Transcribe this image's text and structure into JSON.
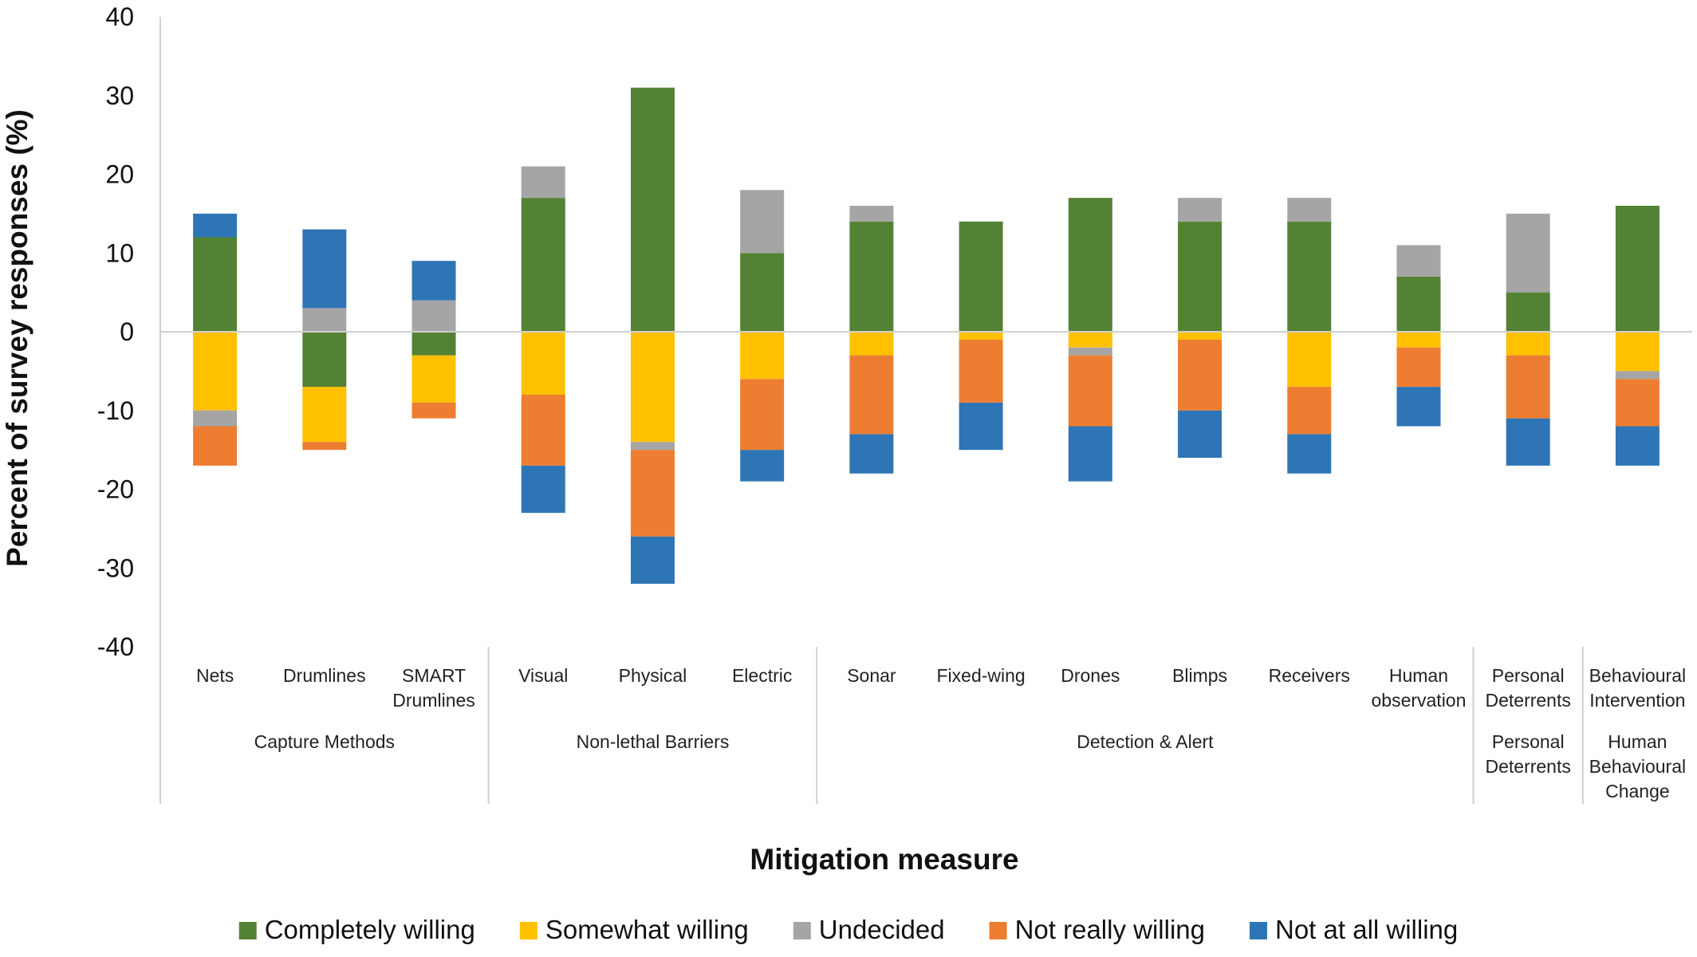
{
  "chart_data": {
    "type": "bar",
    "stacked": true,
    "diverging": true,
    "title": "",
    "xlabel": "Mitigation measure",
    "ylabel": "Percent of survey responses (%)",
    "ylim": [
      -40,
      40
    ],
    "yticks": [
      40,
      30,
      20,
      10,
      0,
      -10,
      -20,
      -30,
      -40
    ],
    "grid": false,
    "legend_position": "bottom",
    "categories": [
      "Nets",
      "Drumlines",
      "SMART Drumlines",
      "Visual",
      "Physical",
      "Electric",
      "Sonar",
      "Fixed-wing",
      "Drones",
      "Blimps",
      "Receivers",
      "Human observation",
      "Personal Deterrents",
      "Behavioural Intervention"
    ],
    "category_lines": [
      [
        "Nets"
      ],
      [
        "Drumlines"
      ],
      [
        "SMART",
        "Drumlines"
      ],
      [
        "Visual"
      ],
      [
        "Physical"
      ],
      [
        "Electric"
      ],
      [
        "Sonar"
      ],
      [
        "Fixed-wing"
      ],
      [
        "Drones"
      ],
      [
        "Blimps"
      ],
      [
        "Receivers"
      ],
      [
        "Human",
        "observation"
      ],
      [
        "Personal",
        "Deterrents"
      ],
      [
        "Behavioural",
        "Intervention"
      ]
    ],
    "groups": [
      {
        "name": "Capture Methods",
        "lines": [
          "Capture Methods"
        ],
        "start": 0,
        "end": 2
      },
      {
        "name": "Non-lethal Barriers",
        "lines": [
          "Non-lethal Barriers"
        ],
        "start": 3,
        "end": 5
      },
      {
        "name": "Detection & Alert",
        "lines": [
          "Detection & Alert"
        ],
        "start": 6,
        "end": 11
      },
      {
        "name": "Personal Deterrents",
        "lines": [
          "Personal",
          "Deterrents"
        ],
        "start": 12,
        "end": 12
      },
      {
        "name": "Human Behavioural Change",
        "lines": [
          "Human",
          "Behavioural",
          "Change"
        ],
        "start": 13,
        "end": 13
      }
    ],
    "series": [
      {
        "name": "Completely willing",
        "color": "#548235",
        "values": [
          12,
          -7,
          -3,
          17,
          31,
          10,
          14,
          14,
          17,
          14,
          14,
          7,
          5,
          16
        ]
      },
      {
        "name": "Somewhat willing",
        "color": "#FFC000",
        "values": [
          -10,
          -7,
          -6,
          -8,
          -14,
          -6,
          -3,
          -1,
          -2,
          -1,
          -7,
          -2,
          -3,
          -5
        ]
      },
      {
        "name": "Undecided",
        "color": "#A5A5A5",
        "values": [
          -2,
          3,
          4,
          4,
          -1,
          8,
          2,
          0,
          -1,
          3,
          3,
          4,
          10,
          -1
        ]
      },
      {
        "name": "Not really willing",
        "color": "#ED7D31",
        "values": [
          -5,
          -1,
          -2,
          -9,
          -11,
          -9,
          -10,
          -8,
          -9,
          -9,
          -6,
          -5,
          -8,
          -6
        ]
      },
      {
        "name": "Not at all willing",
        "color": "#2E75B6",
        "values": [
          3,
          10,
          5,
          -6,
          -6,
          -4,
          -5,
          -6,
          -7,
          -6,
          -5,
          -5,
          -6,
          -5
        ]
      }
    ]
  }
}
